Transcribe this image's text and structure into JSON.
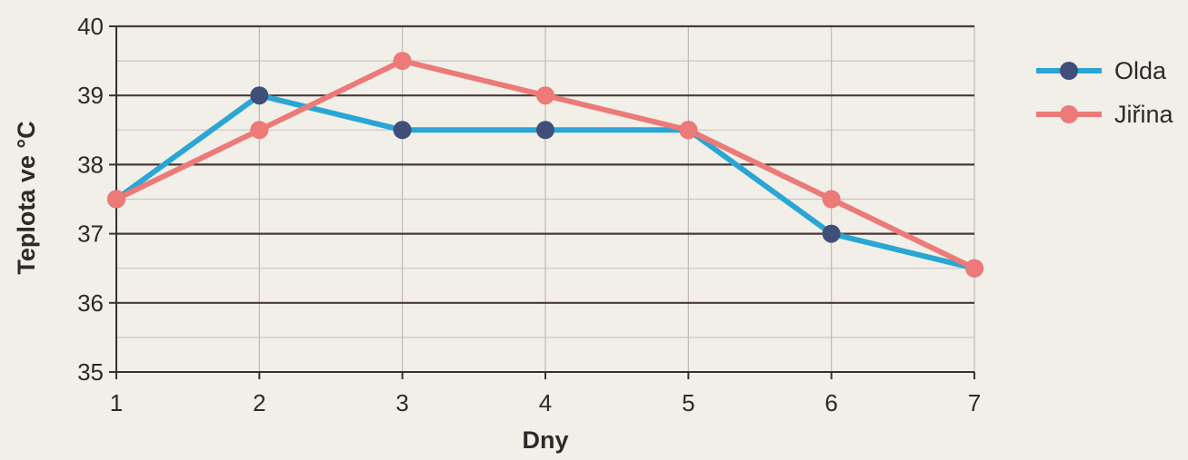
{
  "chart_data": {
    "type": "line",
    "title": "",
    "xlabel": "Dny",
    "ylabel": "Teplota ve °C",
    "x": [
      1,
      2,
      3,
      4,
      5,
      6,
      7
    ],
    "xticks": [
      "1",
      "2",
      "3",
      "4",
      "5",
      "6",
      "7"
    ],
    "yticks": [
      "35",
      "36",
      "37",
      "38",
      "39",
      "40"
    ],
    "ylim": [
      35,
      40
    ],
    "xlim": [
      1,
      7
    ],
    "grid": true,
    "legend_position": "right",
    "series": [
      {
        "name": "Olda",
        "color": "#2aa6d5",
        "marker_color": "#3f4f7a",
        "values": [
          37.5,
          39,
          38.5,
          38.5,
          38.5,
          37,
          36.5
        ]
      },
      {
        "name": "Jiřina",
        "color": "#ec7a78",
        "marker_color": "#ec7a78",
        "values": [
          37.5,
          38.5,
          39.5,
          39,
          38.5,
          37.5,
          36.5
        ]
      }
    ]
  }
}
